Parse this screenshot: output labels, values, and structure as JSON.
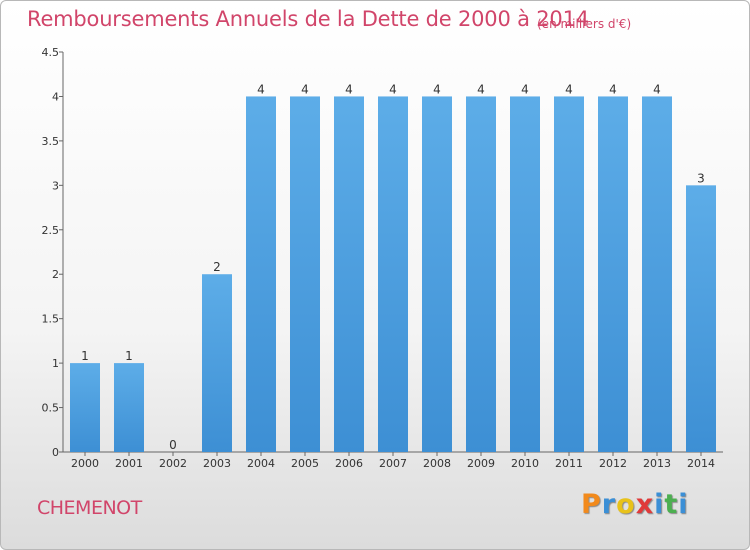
{
  "header": {
    "title": "Remboursements Annuels de la Dette de 2000 à 2014",
    "subtitle": "(en milliers d'€)"
  },
  "footer": {
    "commune": "CHEMENOT",
    "logo": {
      "letters": [
        "P",
        "r",
        "o",
        "x",
        "i",
        "t",
        "i"
      ],
      "colors": [
        "#f28a1c",
        "#3b8fd6",
        "#e8c21a",
        "#e03a3a",
        "#3b8fd6",
        "#4caf50",
        "#3b8fd6"
      ]
    }
  },
  "chart_data": {
    "type": "bar",
    "categories": [
      "2000",
      "2001",
      "2002",
      "2003",
      "2004",
      "2005",
      "2006",
      "2007",
      "2008",
      "2009",
      "2010",
      "2011",
      "2012",
      "2013",
      "2014"
    ],
    "values": [
      1,
      1,
      0,
      2,
      4,
      4,
      4,
      4,
      4,
      4,
      4,
      4,
      4,
      4,
      3
    ],
    "value_labels": [
      "1",
      "1",
      "0",
      "2",
      "4",
      "4",
      "4",
      "4",
      "4",
      "4",
      "4",
      "4",
      "4",
      "4",
      "3"
    ],
    "ylim": [
      0,
      4.5
    ],
    "yticks": [
      0,
      0.5,
      1,
      1.5,
      2,
      2.5,
      3,
      3.5,
      4,
      4.5
    ],
    "ytick_labels": [
      "0",
      "0.5",
      "1",
      "1.5",
      "2",
      "2.5",
      "3",
      "3.5",
      "4",
      "4.5"
    ],
    "bar_color": "#3d8fd4",
    "bar_color_light": "#5dade8",
    "grid": false,
    "legend": "none"
  }
}
